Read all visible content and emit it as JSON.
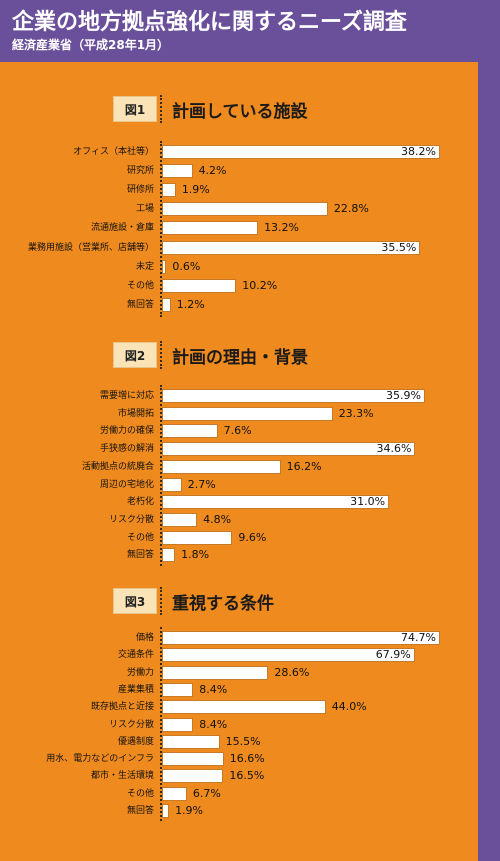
{
  "header": {
    "title": "企業の地方拠点強化に関するニーズ調査",
    "subtitle": "経済産業省（平成28年1月）"
  },
  "colors": {
    "background": "#6a4f9a",
    "panel": "#ef8a1e",
    "bar": "#ffffff",
    "badge": "#fbe3b8"
  },
  "chart_data": [
    {
      "type": "bar",
      "orientation": "horizontal",
      "badge": "図1",
      "title": "計画している施設",
      "categories": [
        "オフィス（本社等）",
        "研究所",
        "研修所",
        "工場",
        "流通施設・倉庫",
        "業務用施設（営業所、店舗等）",
        "未定",
        "その他",
        "無回答"
      ],
      "values": [
        38.2,
        4.2,
        1.9,
        22.8,
        13.2,
        35.5,
        0.6,
        10.2,
        1.2
      ],
      "labels": [
        "38.2%",
        "4.2%",
        "1.9%",
        "22.8%",
        "13.2%",
        "35.5%",
        "0.6%",
        "10.2%",
        "1.2%"
      ],
      "unit": "%"
    },
    {
      "type": "bar",
      "orientation": "horizontal",
      "badge": "図2",
      "title": "計画の理由・背景",
      "categories": [
        "需要増に対応",
        "市場開拓",
        "労働力の確保",
        "手狭感の解消",
        "活動拠点の統廃合",
        "周辺の宅地化",
        "老朽化",
        "リスク分散",
        "その他",
        "無回答"
      ],
      "values": [
        35.9,
        23.3,
        7.6,
        34.6,
        16.2,
        2.7,
        31.0,
        4.8,
        9.6,
        1.8
      ],
      "labels": [
        "35.9%",
        "23.3%",
        "7.6%",
        "34.6%",
        "16.2%",
        "2.7%",
        "31.0%",
        "4.8%",
        "9.6%",
        "1.8%"
      ],
      "unit": "%"
    },
    {
      "type": "bar",
      "orientation": "horizontal",
      "badge": "図3",
      "title": "重視する条件",
      "categories": [
        "価格",
        "交通条件",
        "労働力",
        "産業集積",
        "既存拠点と近接",
        "リスク分散",
        "優遇制度",
        "用水、電力などのインフラ",
        "都市・生活環境",
        "その他",
        "無回答"
      ],
      "values": [
        74.7,
        67.9,
        28.6,
        8.4,
        44.0,
        8.4,
        15.5,
        16.6,
        16.5,
        6.7,
        1.9
      ],
      "labels": [
        "74.7%",
        "67.9%",
        "28.6%",
        "8.4%",
        "44.0%",
        "8.4%",
        "15.5%",
        "16.6%",
        "16.5%",
        "6.7%",
        "1.9%"
      ],
      "unit": "%"
    }
  ]
}
